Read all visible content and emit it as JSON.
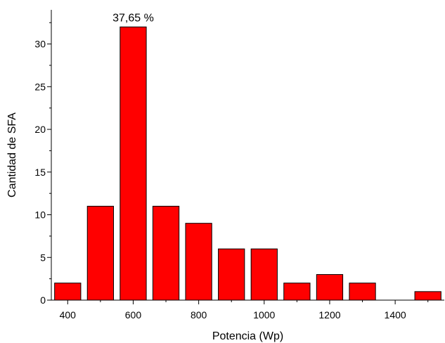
{
  "chart_data": {
    "type": "bar",
    "title": "",
    "xlabel": "Potencia (Wp)",
    "ylabel": "Cantidad de SFA",
    "x": [
      400,
      500,
      600,
      700,
      800,
      900,
      1000,
      1100,
      1200,
      1300,
      1400,
      1500
    ],
    "values": [
      2,
      11,
      32,
      11,
      9,
      6,
      6,
      2,
      3,
      2,
      0,
      1
    ],
    "bar_width": 80,
    "xlim": [
      350,
      1550
    ],
    "ylim": [
      0,
      34
    ],
    "xticks": [
      400,
      600,
      800,
      1000,
      1200,
      1400
    ],
    "yticks": [
      0,
      5,
      10,
      15,
      20,
      25,
      30
    ],
    "annotation": {
      "text": "37,65 %",
      "x": 600,
      "y": 32
    },
    "bar_color": "#ff0000",
    "edge_color": "#000000",
    "grid": false,
    "legend": "none"
  }
}
